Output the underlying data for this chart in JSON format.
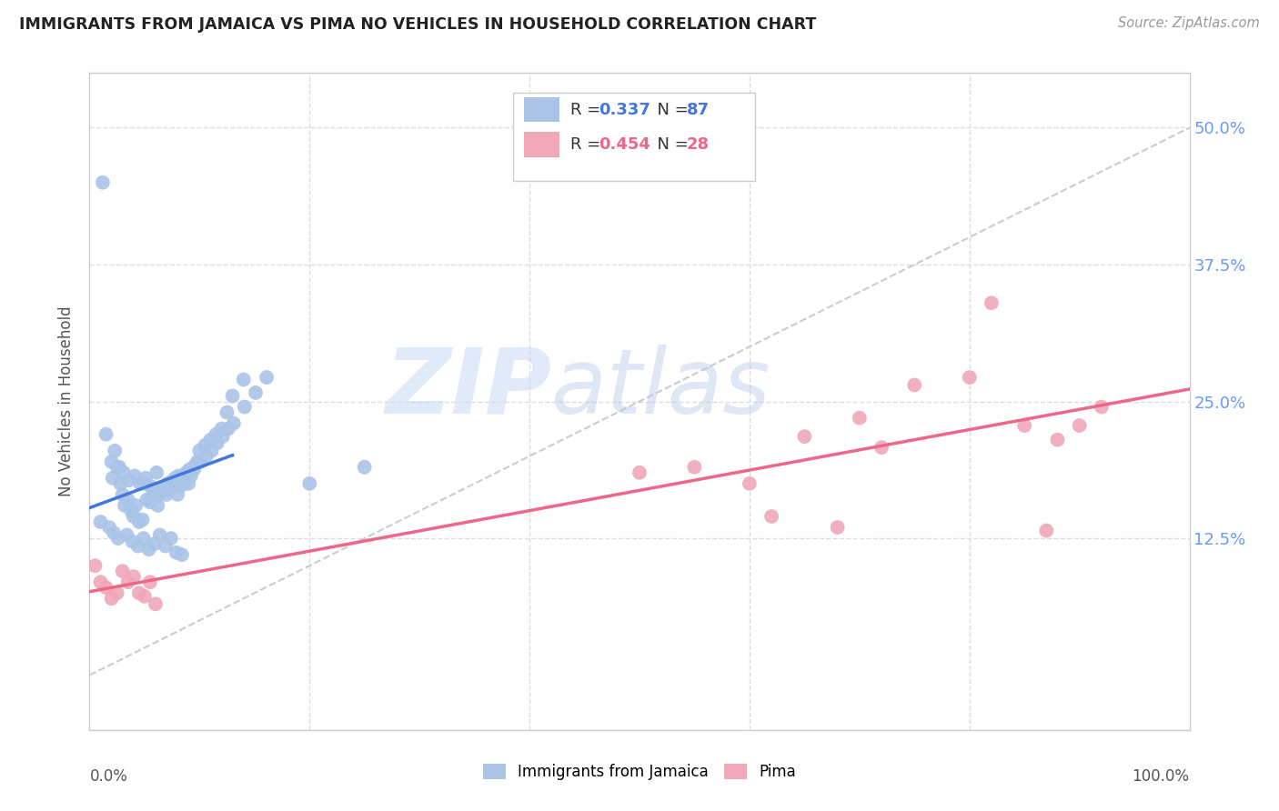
{
  "title": "IMMIGRANTS FROM JAMAICA VS PIMA NO VEHICLES IN HOUSEHOLD CORRELATION CHART",
  "source": "Source: ZipAtlas.com",
  "ylabel": "No Vehicles in Household",
  "ytick_labels": [
    "12.5%",
    "25.0%",
    "37.5%",
    "50.0%"
  ],
  "ytick_values": [
    12.5,
    25.0,
    37.5,
    50.0
  ],
  "legend_labels": [
    "Immigrants from Jamaica",
    "Pima"
  ],
  "legend_r_jamaica": "0.337",
  "legend_n_jamaica": "87",
  "legend_r_pima": "0.454",
  "legend_n_pima": "28",
  "color_jamaica": "#aac4e8",
  "color_pima": "#f0a8b8",
  "color_trend_jamaica": "#4477dd",
  "color_trend_pima": "#ee6688",
  "color_diagonal": "#cccccc",
  "color_title": "#222222",
  "color_source": "#999999",
  "color_ytick_right": "#6699ff",
  "background_color": "#ffffff",
  "grid_color": "#dddddd",
  "watermark_zip": "ZIP",
  "watermark_atlas": "atlas",
  "watermark_color_zip": "#c8daf0",
  "watermark_color_atlas": "#c0c8e0",
  "jamaica_x": [
    1.2,
    2.1,
    2.5,
    2.8,
    3.0,
    3.2,
    3.5,
    3.8,
    4.0,
    4.2,
    4.5,
    4.8,
    5.0,
    5.2,
    5.5,
    5.8,
    6.0,
    6.2,
    6.5,
    6.8,
    7.0,
    7.2,
    7.5,
    7.8,
    8.0,
    8.2,
    8.5,
    8.8,
    9.0,
    9.2,
    9.5,
    9.8,
    10.0,
    10.5,
    11.0,
    11.5,
    12.0,
    12.5,
    13.0,
    14.0,
    1.5,
    2.0,
    2.3,
    2.7,
    3.1,
    3.6,
    4.1,
    4.6,
    5.1,
    5.6,
    6.1,
    6.6,
    7.1,
    7.6,
    8.1,
    8.6,
    9.1,
    9.6,
    10.1,
    10.6,
    11.1,
    11.6,
    12.1,
    12.6,
    13.1,
    14.1,
    15.1,
    16.1,
    1.0,
    1.8,
    2.2,
    2.6,
    3.4,
    3.9,
    4.4,
    4.9,
    5.4,
    5.9,
    6.4,
    6.9,
    7.4,
    7.9,
    8.4,
    20.0,
    25.0
  ],
  "jamaica_y": [
    45.0,
    18.0,
    19.0,
    17.5,
    16.5,
    15.5,
    16.0,
    15.0,
    14.5,
    15.5,
    14.0,
    14.2,
    17.5,
    16.0,
    15.8,
    16.5,
    16.2,
    15.5,
    16.8,
    17.2,
    16.5,
    17.0,
    17.5,
    18.0,
    16.5,
    17.2,
    17.8,
    18.5,
    17.5,
    18.2,
    18.8,
    19.5,
    20.5,
    21.0,
    21.5,
    22.0,
    22.5,
    24.0,
    25.5,
    27.0,
    22.0,
    19.5,
    20.5,
    19.0,
    18.5,
    17.8,
    18.2,
    17.5,
    18.0,
    17.2,
    18.5,
    17.0,
    17.5,
    17.8,
    18.2,
    17.5,
    18.8,
    19.2,
    19.5,
    20.0,
    20.5,
    21.2,
    21.8,
    22.5,
    23.0,
    24.5,
    25.8,
    27.2,
    14.0,
    13.5,
    13.0,
    12.5,
    12.8,
    12.2,
    11.8,
    12.5,
    11.5,
    12.0,
    12.8,
    11.8,
    12.5,
    11.2,
    11.0,
    17.5,
    19.0
  ],
  "pima_x": [
    0.5,
    1.0,
    1.5,
    2.0,
    2.5,
    3.0,
    3.5,
    4.0,
    4.5,
    5.0,
    5.5,
    6.0,
    50.0,
    55.0,
    60.0,
    65.0,
    70.0,
    75.0,
    80.0,
    85.0,
    88.0,
    90.0,
    92.0,
    62.0,
    68.0,
    72.0,
    82.0,
    87.0
  ],
  "pima_y": [
    10.0,
    8.5,
    8.0,
    7.0,
    7.5,
    9.5,
    8.5,
    9.0,
    7.5,
    7.2,
    8.5,
    6.5,
    18.5,
    19.0,
    17.5,
    21.8,
    23.5,
    26.5,
    27.2,
    22.8,
    21.5,
    22.8,
    24.5,
    14.5,
    13.5,
    20.8,
    34.0,
    13.2
  ],
  "xlim": [
    0,
    100
  ],
  "ylim": [
    -5,
    55
  ],
  "trend_jamaica_x0": 0,
  "trend_jamaica_x1": 13,
  "trend_pima_x0": 0,
  "trend_pima_x1": 100
}
